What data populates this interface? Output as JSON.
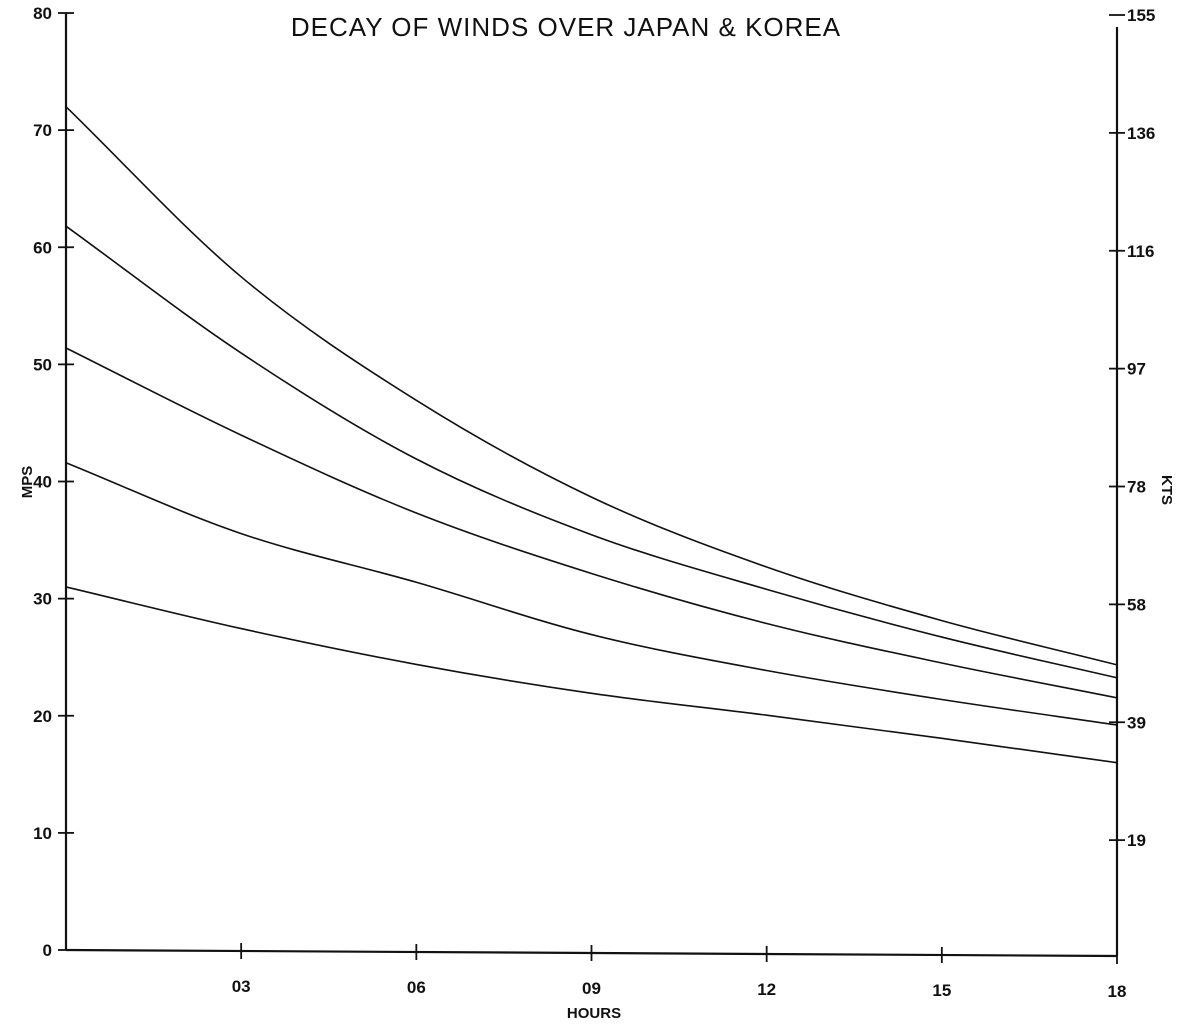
{
  "chart_data": {
    "type": "line",
    "title": "DECAY OF WINDS OVER JAPAN & KOREA",
    "xlabel": "HOURS",
    "ylabel": "MPS",
    "y2label": "KTS",
    "xlim": [
      0,
      18
    ],
    "ylim": [
      0,
      80
    ],
    "x_ticks": [
      {
        "value": 3,
        "label": "03"
      },
      {
        "value": 6,
        "label": "06"
      },
      {
        "value": 9,
        "label": "09"
      },
      {
        "value": 12,
        "label": "12"
      },
      {
        "value": 15,
        "label": "15"
      },
      {
        "value": 18,
        "label": "18"
      }
    ],
    "y_ticks": [
      {
        "value": 0,
        "label": "0"
      },
      {
        "value": 10,
        "label": "10"
      },
      {
        "value": 20,
        "label": "20"
      },
      {
        "value": 30,
        "label": "30"
      },
      {
        "value": 40,
        "label": "40"
      },
      {
        "value": 50,
        "label": "50"
      },
      {
        "value": 60,
        "label": "60"
      },
      {
        "value": 70,
        "label": "70"
      },
      {
        "value": 80,
        "label": "80"
      }
    ],
    "y2_ticks": [
      {
        "value": 10,
        "label": "19"
      },
      {
        "value": 20,
        "label": "39"
      },
      {
        "value": 30,
        "label": "58"
      },
      {
        "value": 40,
        "label": "78"
      },
      {
        "value": 50,
        "label": "97"
      },
      {
        "value": 60,
        "label": "116"
      },
      {
        "value": 70,
        "label": "136"
      },
      {
        "value": 80,
        "label": "155"
      }
    ],
    "x": [
      0,
      3,
      6,
      9,
      12,
      15,
      18
    ],
    "series": [
      {
        "values": [
          72.0,
          57.5,
          47.0,
          38.8,
          32.9,
          28.4,
          24.7
        ]
      },
      {
        "values": [
          61.8,
          51.0,
          42.0,
          35.6,
          31.0,
          27.0,
          23.6
        ]
      },
      {
        "values": [
          51.4,
          44.0,
          37.4,
          32.3,
          28.1,
          24.8,
          21.9
        ]
      },
      {
        "values": [
          41.6,
          35.6,
          31.5,
          27.1,
          24.1,
          21.7,
          19.6
        ]
      },
      {
        "values": [
          31.0,
          27.5,
          24.5,
          22.1,
          20.3,
          18.4,
          16.4
        ]
      }
    ],
    "grid": false,
    "legend": "none"
  }
}
